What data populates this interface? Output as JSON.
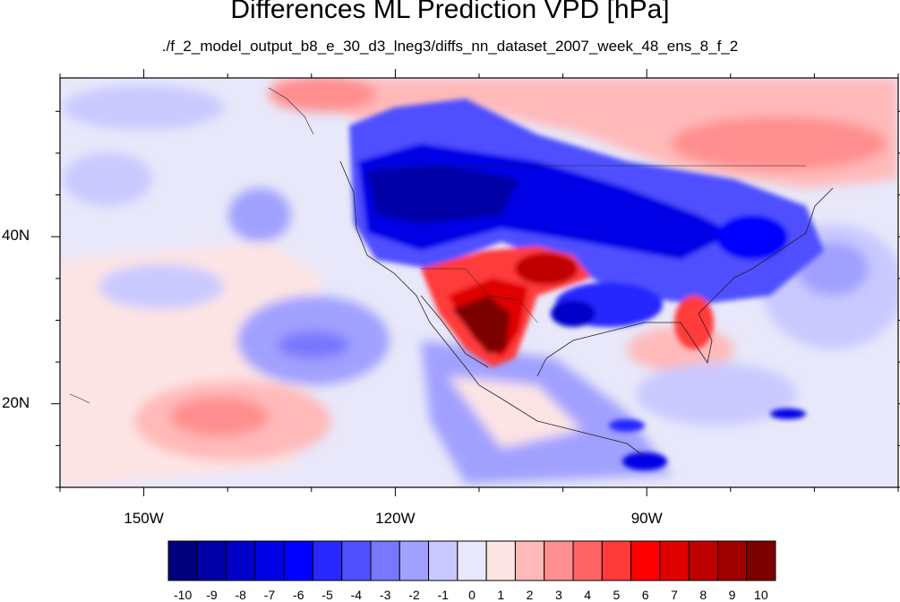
{
  "title": "Differences ML Prediction VPD [hPa]",
  "subtitle": "./f_2_model_output_b8_e_30_d3_lneg3/diffs_nn_dataset_2007_week_48_ens_8_f_2",
  "map": {
    "lon_range": [
      -160,
      -60
    ],
    "lat_range": [
      10,
      59
    ],
    "x_ticks": [
      {
        "lon": -150,
        "label": "150W"
      },
      {
        "lon": -120,
        "label": "120W"
      },
      {
        "lon": -90,
        "label": "90W"
      }
    ],
    "y_ticks": [
      {
        "lat": 40,
        "label": "40N"
      },
      {
        "lat": 20,
        "label": "20N"
      }
    ]
  },
  "colorbar": {
    "labels": [
      "-10",
      "-9",
      "-8",
      "-7",
      "-6",
      "-5",
      "-4",
      "-3",
      "-2",
      "-1",
      "0",
      "1",
      "2",
      "3",
      "4",
      "5",
      "6",
      "7",
      "8",
      "9",
      "10"
    ],
    "colors": [
      "#00007d",
      "#0000a6",
      "#0000c8",
      "#0000e6",
      "#0000ff",
      "#2828ff",
      "#4f4fff",
      "#7777ff",
      "#a0a0ff",
      "#c9c9ff",
      "#e8e8fa",
      "#fde4e4",
      "#ffb9b9",
      "#ff8e8e",
      "#ff6464",
      "#ff3a3a",
      "#ff0000",
      "#e00000",
      "#c00000",
      "#a00000",
      "#7d0000"
    ]
  }
}
